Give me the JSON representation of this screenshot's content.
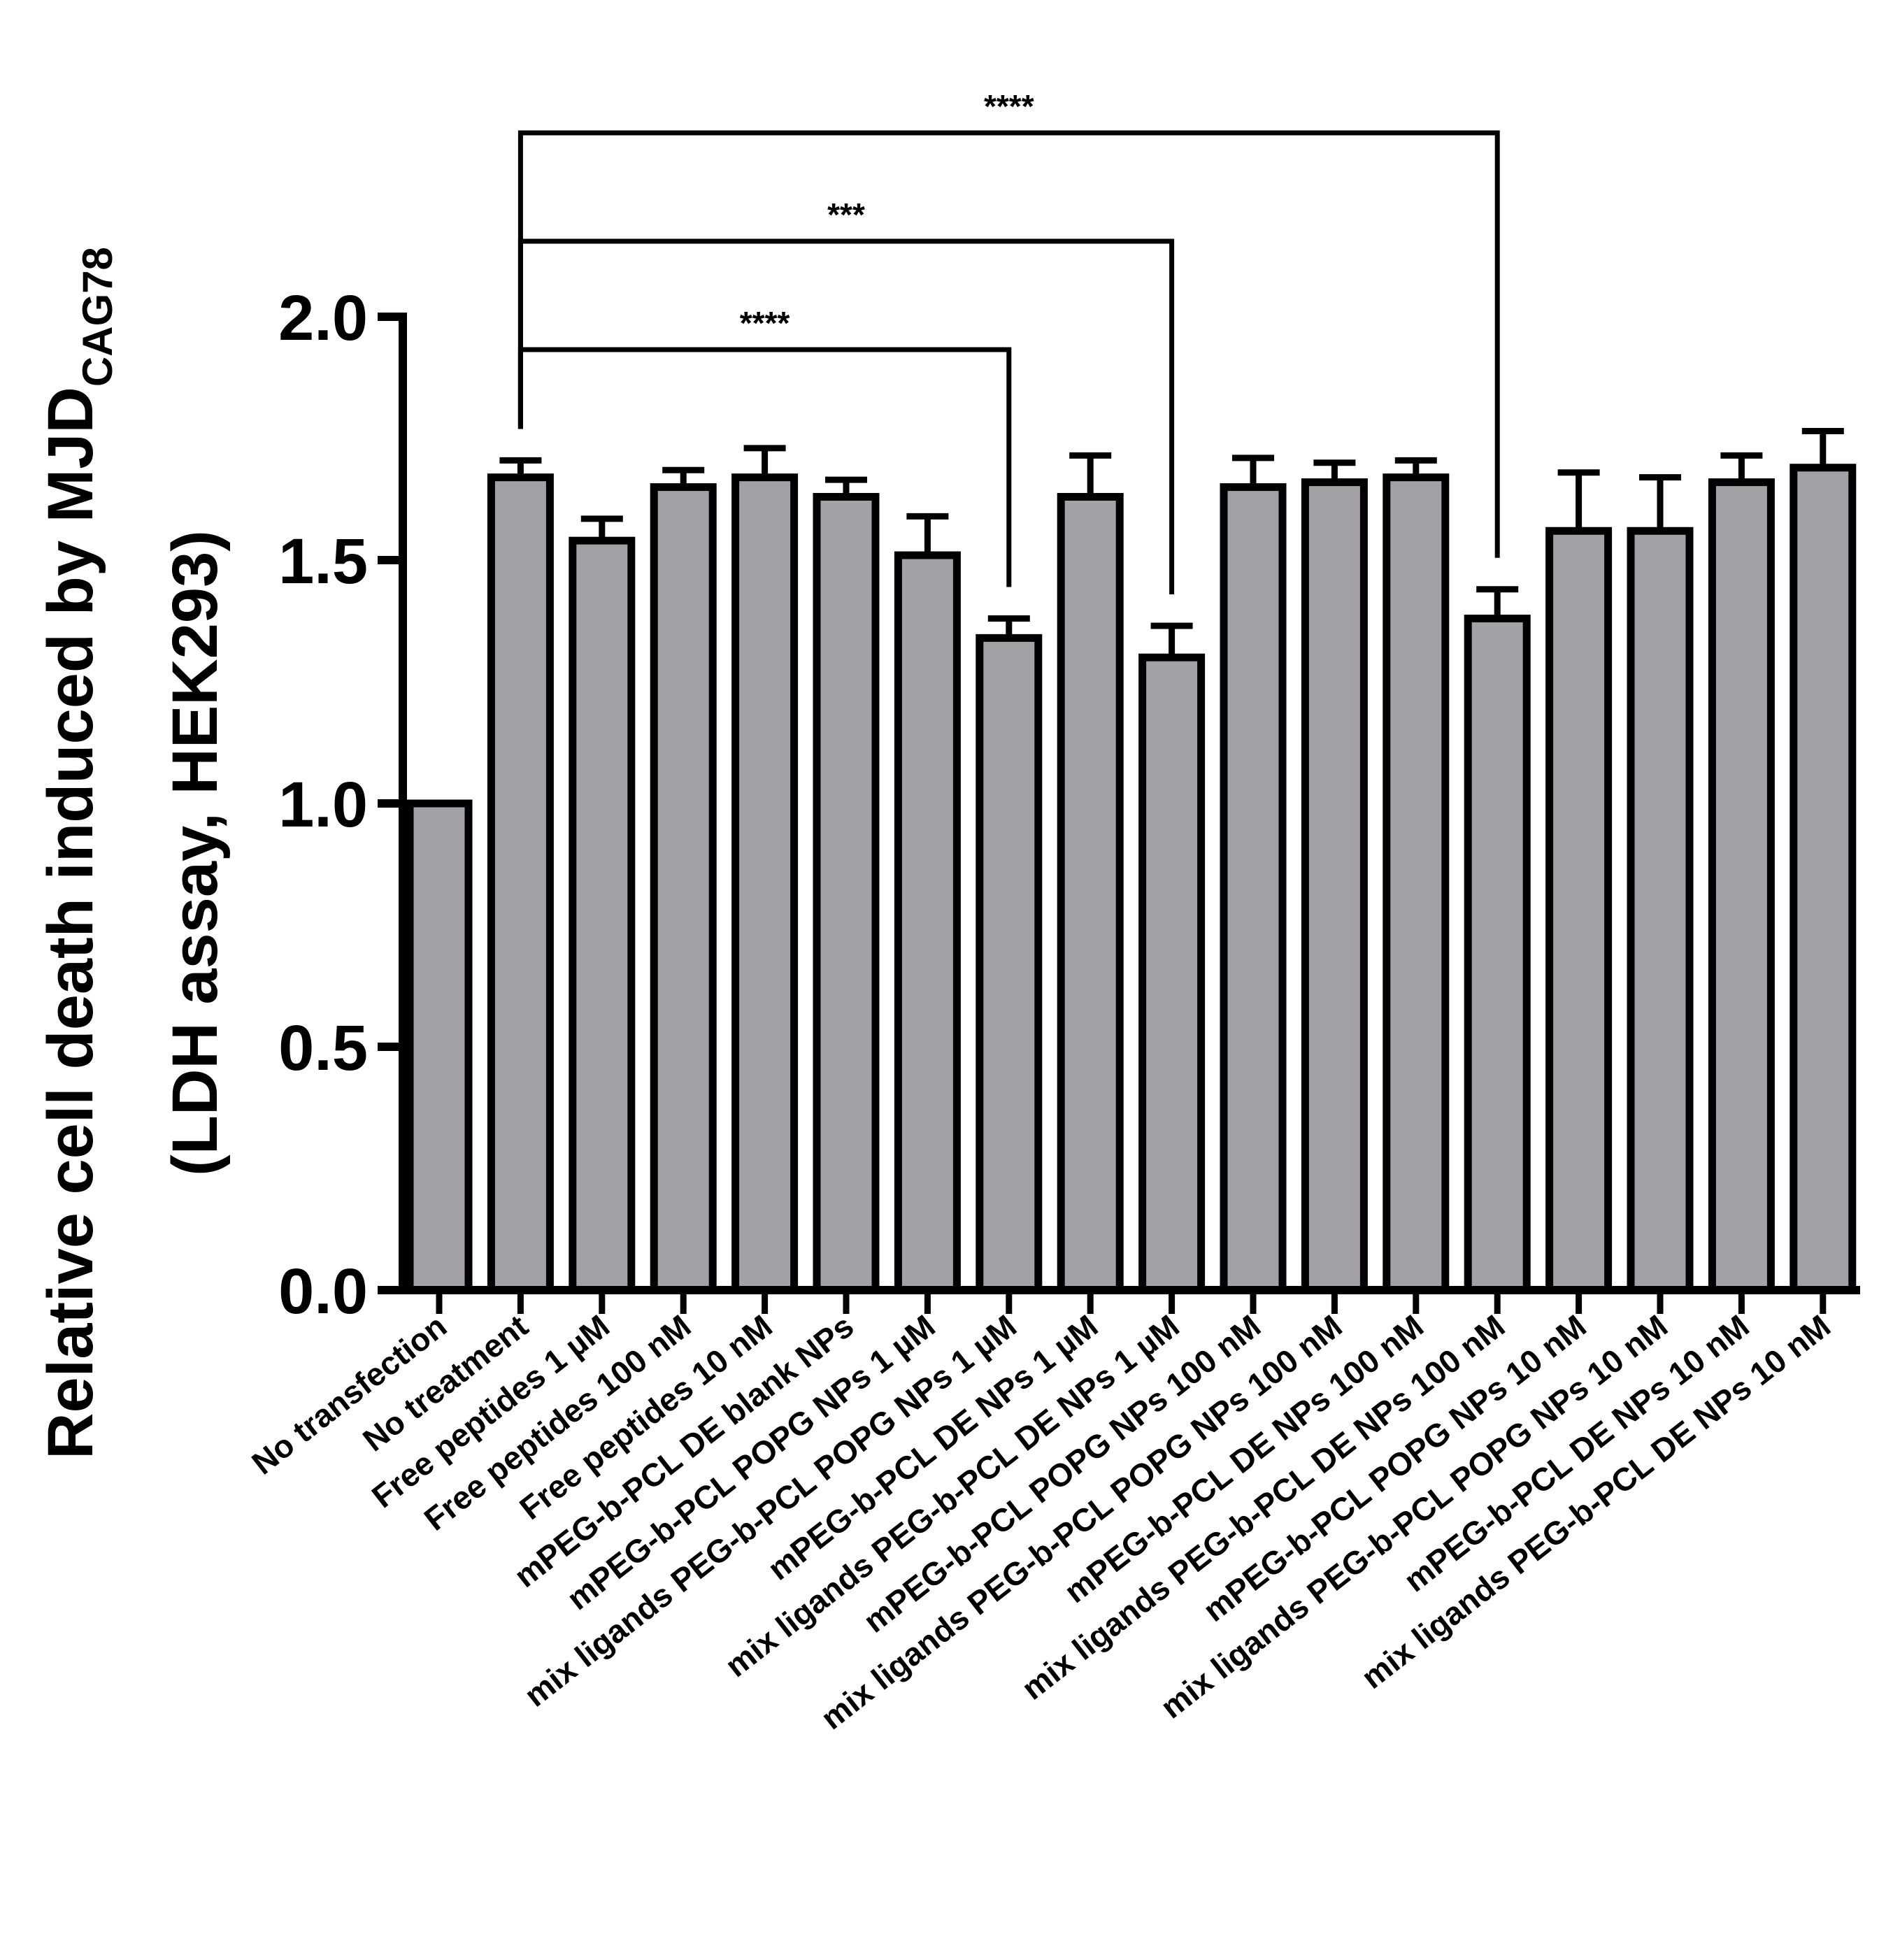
{
  "chart_data": {
    "type": "bar",
    "title": "",
    "xlabel": "",
    "ylabel_line1": "Relative cell death induced by MJD",
    "ylabel_subscript": "CAG78",
    "ylabel_line2": "(LDH assay, HEK293)",
    "ylim": [
      0,
      2.0
    ],
    "yticks": [
      "0.0",
      "0.5",
      "1.0",
      "1.5",
      "2.0"
    ],
    "categories": [
      "No transfection",
      "No treatment",
      "Free peptides 1 µM",
      "Free peptides 100 nM",
      "Free peptides 10 nM",
      "mPEG-b-PCL DE blank NPs",
      "mPEG-b-PCL POPG NPs 1 µM",
      "mix ligands PEG-b-PCL POPG NPs 1 µM",
      "mPEG-b-PCL DE NPs 1 µM",
      "mix ligands PEG-b-PCL DE NPs 1 µM",
      "mPEG-b-PCL POPG NPs 100 nM",
      "mix ligands PEG-b-PCL POPG NPs 100 nM",
      "mPEG-b-PCL DE NPs 100 nM",
      "mix ligands PEG-b-PCL DE NPs 100 nM",
      "mPEG-b-PCL POPG NPs 10 nM",
      "mix ligands PEG-b-PCL POPG NPs 10 nM",
      "mPEG-b-PCL DE NPs 10 nM",
      "mix ligands PEG-b-PCL DE NPs 10 nM"
    ],
    "values": [
      1.0,
      1.67,
      1.54,
      1.65,
      1.67,
      1.63,
      1.51,
      1.34,
      1.63,
      1.3,
      1.65,
      1.66,
      1.67,
      1.38,
      1.56,
      1.56,
      1.66,
      1.69
    ],
    "errors": [
      0.0,
      0.035,
      0.045,
      0.035,
      0.06,
      0.035,
      0.08,
      0.04,
      0.085,
      0.065,
      0.06,
      0.04,
      0.035,
      0.06,
      0.12,
      0.11,
      0.055,
      0.075
    ],
    "bar_color": "#a3a1a6",
    "significance": [
      {
        "from": 1,
        "to": 7,
        "label": "****"
      },
      {
        "from": 1,
        "to": 9,
        "label": "***"
      },
      {
        "from": 1,
        "to": 13,
        "label": "****"
      }
    ]
  }
}
